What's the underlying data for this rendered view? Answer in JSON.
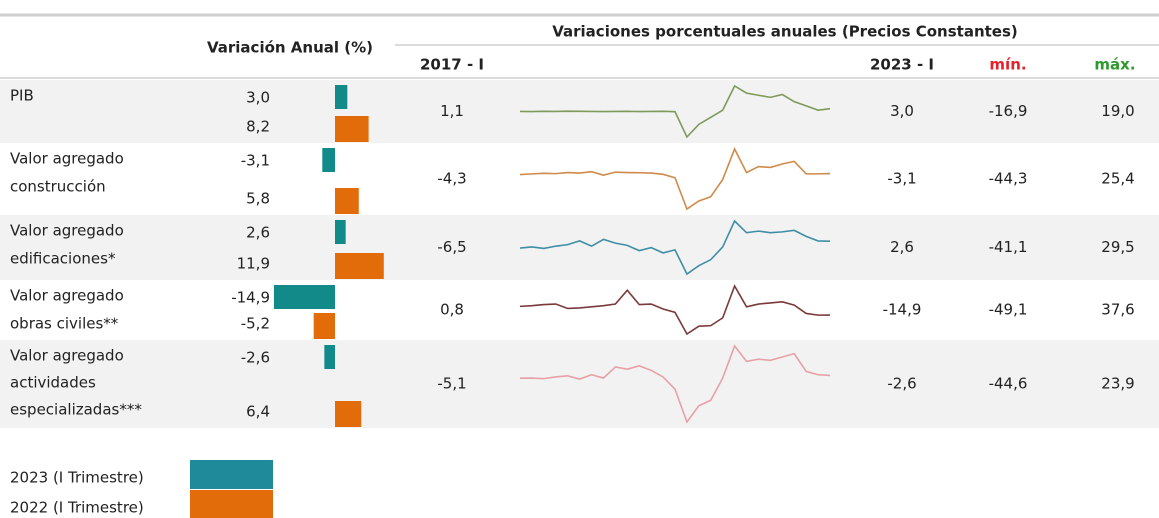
{
  "header": {
    "title": "Variación Anual (%)",
    "subtitle": "Variaciones porcentuales anuales  (Precios Constantes)",
    "start": "2017 - I",
    "end": "2023 - I",
    "min": "mín.",
    "max": "máx.",
    "min_color": "#e8202a",
    "max_color": "#2e9a2e"
  },
  "bar_colors": [
    "#138a8a",
    "#e36c0a"
  ],
  "rows": [
    {
      "label": [
        "PIB"
      ],
      "line_color": "#7f9a5a",
      "values": [
        {
          "value": 3.0,
          "label": "3,0"
        },
        {
          "value": 8.2,
          "label": "8,2"
        }
      ],
      "start": {
        "value": 1.1,
        "label": "1,1"
      },
      "end": {
        "value": 3.0,
        "label": "3,0"
      },
      "min": {
        "value": -16.9,
        "label": "-16,9"
      },
      "max": {
        "value": 19.0,
        "label": "19,0"
      },
      "series": [
        1.1,
        1.0,
        1.2,
        1.1,
        1.3,
        1.2,
        1.1,
        1.0,
        1.1,
        1.2,
        1.0,
        1.1,
        1.2,
        0.9,
        -16.9,
        -8,
        -3,
        2,
        19.0,
        14,
        12.5,
        11,
        13,
        8,
        5,
        2.0,
        3.0
      ]
    },
    {
      "label": [
        "Valor agregado",
        "construcción"
      ],
      "line_color": "#d08a4a",
      "values": [
        {
          "value": -3.1,
          "label": "-3,1"
        },
        {
          "value": 5.8,
          "label": "5,8"
        }
      ],
      "start": {
        "value": -4.3,
        "label": "-4,3"
      },
      "end": {
        "value": -3.1,
        "label": "-3,1"
      },
      "min": {
        "value": -44.3,
        "label": "-44,3"
      },
      "max": {
        "value": 25.4,
        "label": "25,4"
      },
      "series": [
        -4.3,
        -3.5,
        -2.8,
        -3.2,
        -2,
        -2.5,
        -1,
        -5,
        -1.5,
        -2,
        -2.2,
        -2.5,
        -4,
        -8,
        -44.3,
        -35,
        -30,
        -10,
        25.4,
        -2,
        5,
        4,
        8,
        11,
        -3.5,
        -3.5,
        -3.1
      ]
    },
    {
      "label": [
        "Valor agregado",
        "edificaciones*"
      ],
      "line_color": "#3f8ea6",
      "values": [
        {
          "value": 2.6,
          "label": "2,6"
        },
        {
          "value": 11.9,
          "label": "11,9"
        }
      ],
      "start": {
        "value": -6.5,
        "label": "-6,5"
      },
      "end": {
        "value": 2.6,
        "label": "2,6"
      },
      "min": {
        "value": -41.1,
        "label": "-41,1"
      },
      "max": {
        "value": 29.5,
        "label": "29,5"
      },
      "series": [
        -6.5,
        -5,
        -7,
        -4,
        -2,
        3,
        -4,
        5,
        0,
        -3,
        -10,
        -6,
        -13,
        -9,
        -41.1,
        -30,
        -22,
        -5,
        29.5,
        14,
        16,
        14,
        15,
        17,
        9,
        3,
        2.6
      ]
    },
    {
      "label": [
        "Valor agregado",
        "obras civiles**"
      ],
      "line_color": "#7a3a3a",
      "values": [
        {
          "value": -14.9,
          "label": "-14,9"
        },
        {
          "value": -5.2,
          "label": "-5,2"
        }
      ],
      "start": {
        "value": 0.8,
        "label": "0,8"
      },
      "end": {
        "value": -14.9,
        "label": "-14,9"
      },
      "min": {
        "value": -49.1,
        "label": "-49,1"
      },
      "max": {
        "value": 37.6,
        "label": "37,6"
      },
      "series": [
        0.8,
        2,
        4,
        5,
        -3,
        -2,
        0,
        2,
        5,
        30,
        4,
        5,
        -4,
        -10,
        -49.1,
        -35,
        -34,
        -20,
        37.6,
        0,
        5,
        7,
        9,
        3,
        -12,
        -15,
        -14.9
      ]
    },
    {
      "label": [
        "Valor agregado",
        "actividades",
        "especializadas***"
      ],
      "line_color": "#e8a0a8",
      "values": [
        {
          "value": -2.6,
          "label": "-2,6"
        },
        {
          "value": 6.4,
          "label": "6,4"
        }
      ],
      "start": {
        "value": -5.1,
        "label": "-5,1"
      },
      "end": {
        "value": -2.6,
        "label": "-2,6"
      },
      "min": {
        "value": -44.6,
        "label": "-44,6"
      },
      "max": {
        "value": 23.9,
        "label": "23,9"
      },
      "series": [
        -5.1,
        -5,
        -5.5,
        -4,
        -3,
        -6,
        -2,
        -5,
        5,
        3,
        6,
        2,
        -4,
        -15,
        -44.6,
        -30,
        -25,
        -5,
        23.9,
        10,
        12,
        11,
        14,
        17,
        1,
        -2,
        -2.6
      ]
    }
  ],
  "legend": [
    {
      "name": "2023 (I Trimestre)",
      "color": "#1f8a9a"
    },
    {
      "name": "2022 (I Trimestre)",
      "color": "#e36c0a"
    }
  ]
}
